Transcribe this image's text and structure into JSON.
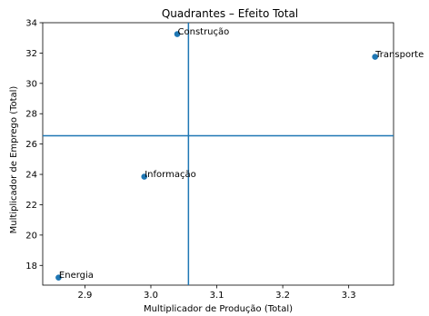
{
  "chart_data": {
    "type": "scatter",
    "title": "Quadrantes – Efeito Total",
    "xlabel": "Multiplicador de Produção (Total)",
    "ylabel": "Multiplicador de Emprego (Total)",
    "xlim": [
      2.836,
      3.368
    ],
    "ylim": [
      16.7,
      34.0
    ],
    "xticks": [
      2.9,
      3.0,
      3.1,
      3.2,
      3.3
    ],
    "yticks": [
      18,
      20,
      22,
      24,
      26,
      28,
      30,
      32,
      34
    ],
    "grid": false,
    "points": [
      {
        "label": "Construção",
        "x": 3.04,
        "y": 33.25
      },
      {
        "label": "Transporte",
        "x": 3.34,
        "y": 31.75
      },
      {
        "label": "Informação",
        "x": 2.99,
        "y": 23.85
      },
      {
        "label": "Energia",
        "x": 2.86,
        "y": 17.2
      }
    ],
    "vline_x": 3.057,
    "hline_y": 26.55,
    "colors": {
      "marker": "#1f77b4",
      "line": "#1f77b4"
    }
  }
}
